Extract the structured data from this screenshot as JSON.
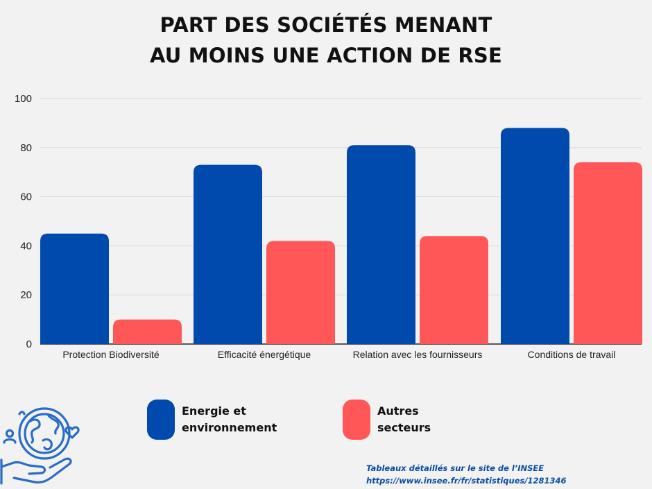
{
  "title_lines": [
    "PART DES SOCIÉTÉS MENANT",
    "AU MOINS UNE ACTION DE RSE"
  ],
  "colors": {
    "energie": "#004aad",
    "autres": "#ff5757",
    "grid": "#d9d9d9",
    "axis": "#222222",
    "source_text": "#0b4da2",
    "icon": "#2a6cc4"
  },
  "legend": [
    {
      "series_index": 0,
      "lines": [
        "Energie et",
        "environnement"
      ]
    },
    {
      "series_index": 1,
      "lines": [
        "Autres",
        "secteurs"
      ]
    }
  ],
  "source": {
    "line1": "Tableaux détaillés sur le site de l’INSEE",
    "line2": "https://www.insee.fr/fr/statistiques/1281346"
  },
  "icon": "earth-in-hand-icon",
  "chart_data": {
    "type": "bar",
    "title": "PART DES SOCIÉTÉS MENANT AU MOINS UNE ACTION DE RSE",
    "categories": [
      "Protection Biodiversité",
      "Efficacité énergétique",
      "Relation avec les fournisseurs",
      "Conditions de travail"
    ],
    "series": [
      {
        "name": "Energie et environnement",
        "values": [
          45,
          73,
          81,
          88
        ]
      },
      {
        "name": "Autres secteurs",
        "values": [
          10,
          42,
          44,
          74
        ]
      }
    ],
    "yticks": [
      0,
      20,
      40,
      60,
      80,
      100
    ],
    "ylim": [
      0,
      100
    ],
    "xlabel": "",
    "ylabel": "",
    "grid": true,
    "legend_position": "bottom"
  }
}
